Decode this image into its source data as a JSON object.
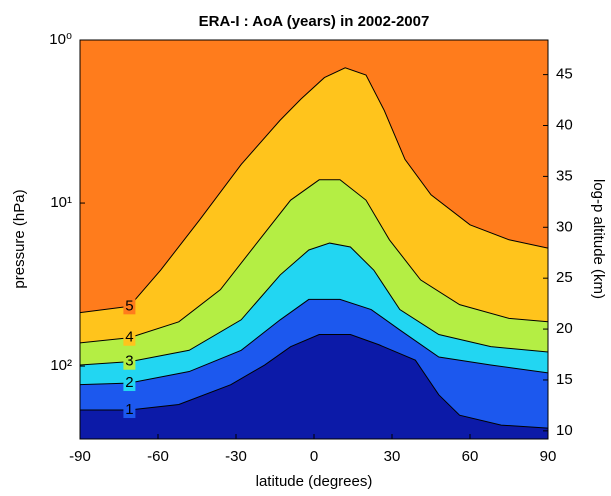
{
  "chart_data": {
    "type": "contour",
    "title": "ERA-I : AoA (years) in 2002-2007",
    "xlabel": "latitude (degrees)",
    "ylabel": "pressure (hPa)",
    "y2label": "log-p altitude (km)",
    "xlim": [
      -90,
      90
    ],
    "xticks": [
      -90,
      -60,
      -30,
      0,
      30,
      60,
      90
    ],
    "ylim": [
      1,
      280
    ],
    "yscale": "log",
    "yticks": [
      {
        "value": 1,
        "label": "10⁰"
      },
      {
        "value": 10,
        "label": "10¹"
      },
      {
        "value": 100,
        "label": "10²"
      }
    ],
    "y2lim": [
      48.4,
      9.2
    ],
    "y2ticks": [
      10,
      15,
      20,
      25,
      30,
      35,
      40,
      45
    ],
    "base_color": "#0c1aa8",
    "contours": [
      {
        "level": 1,
        "fill": "#1c58ee",
        "x": [
          -90,
          -71,
          -52,
          -32,
          -19,
          -9,
          2,
          14,
          25,
          39,
          48,
          56,
          72,
          90
        ],
        "y": [
          186,
          186,
          172,
          130,
          98.5,
          76,
          64,
          64,
          74,
          92,
          150,
          200,
          230,
          240
        ]
      },
      {
        "level": 2,
        "fill": "#22d6f2",
        "x": [
          -90,
          -71,
          -48,
          -28,
          -13,
          -2,
          10,
          22,
          33,
          48,
          68,
          90
        ],
        "y": [
          130,
          127,
          108,
          80,
          52,
          39,
          39,
          45,
          60,
          88,
          98.5,
          110
        ]
      },
      {
        "level": 3,
        "fill": "#b4ee44",
        "x": [
          -90,
          -71,
          -48,
          -28,
          -13,
          -2,
          6,
          14,
          23,
          33,
          48,
          68,
          90
        ],
        "y": [
          98.5,
          94,
          80,
          52,
          27.6,
          19.4,
          17.6,
          18.6,
          25.8,
          45,
          64,
          76,
          82
        ]
      },
      {
        "level": 4,
        "fill": "#ffc41c",
        "x": [
          -90,
          -71,
          -52,
          -36,
          -21,
          -9,
          2,
          10,
          20,
          29,
          41,
          56,
          75,
          90
        ],
        "y": [
          72,
          67,
          53.5,
          34,
          16.8,
          9.6,
          7.2,
          7.2,
          9.6,
          16.8,
          29.6,
          42,
          51,
          53.5
        ]
      },
      {
        "level": 5,
        "fill": "#ff7c1c",
        "x": [
          -90,
          -71,
          -59,
          -44,
          -28,
          -13,
          -5,
          4,
          12,
          20,
          27,
          35,
          45,
          60,
          75,
          90
        ],
        "y": [
          47,
          43,
          25.8,
          12.7,
          5.8,
          3.1,
          2.3,
          1.7,
          1.48,
          1.64,
          2.7,
          5.4,
          8.9,
          13.6,
          16.8,
          18.9
        ]
      }
    ]
  }
}
